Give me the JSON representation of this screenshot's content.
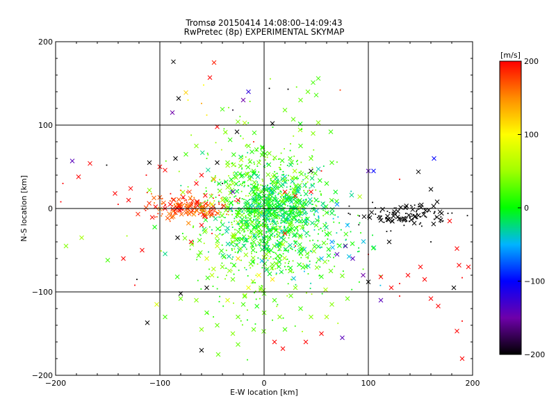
{
  "chart_data": {
    "type": "scatter",
    "title": "Tromsø 20150414 14:08:00–14:09:43",
    "subtitle": "RwPretec (8p) EXPERIMENTAL SKYMAP",
    "xlabel": "E-W location [km]",
    "ylabel": "N-S location [km]",
    "xlim": [
      -200,
      200
    ],
    "ylim": [
      -200,
      200
    ],
    "xticks": [
      -200,
      -100,
      0,
      100,
      200
    ],
    "yticks": [
      -200,
      -100,
      0,
      100,
      200
    ],
    "grid": true,
    "colorbar": {
      "label": "[m/s]",
      "range": [
        -200,
        200
      ],
      "ticks": [
        200,
        100,
        0,
        -100,
        -200
      ],
      "colors": [
        "#000000",
        "#8000c0",
        "#0000ff",
        "#00c0ff",
        "#00ff00",
        "#ffff00",
        "#ff8000",
        "#ff0000"
      ]
    },
    "markers": {
      "cross": "x",
      "dot": "."
    },
    "points": [
      [
        -87,
        176,
        -200,
        "x"
      ],
      [
        -48,
        175,
        190,
        "x"
      ],
      [
        -52,
        157,
        200,
        "x"
      ],
      [
        -58,
        148,
        100,
        "."
      ],
      [
        -75,
        139,
        120,
        "x"
      ],
      [
        -82,
        132,
        -200,
        "x"
      ],
      [
        -73,
        130,
        100,
        "."
      ],
      [
        -60,
        126,
        140,
        "."
      ],
      [
        -88,
        115,
        -150,
        "x"
      ],
      [
        -55,
        112,
        110,
        "."
      ],
      [
        -40,
        119,
        20,
        "x"
      ],
      [
        -30,
        118,
        -190,
        "."
      ],
      [
        -20,
        130,
        -150,
        "x"
      ],
      [
        -15,
        140,
        -120,
        "x"
      ],
      [
        5,
        144,
        -200,
        "."
      ],
      [
        23,
        143,
        -200,
        "."
      ],
      [
        35,
        130,
        30,
        "x"
      ],
      [
        42,
        140,
        30,
        "x"
      ],
      [
        50,
        136,
        20,
        "x"
      ],
      [
        47,
        151,
        20,
        "x"
      ],
      [
        52,
        156,
        20,
        "x"
      ],
      [
        73,
        142,
        180,
        "."
      ],
      [
        -34,
        121,
        40,
        "."
      ],
      [
        -45,
        98,
        200,
        "x"
      ],
      [
        -26,
        92,
        -200,
        "x"
      ],
      [
        8,
        102,
        -200,
        "x"
      ],
      [
        20,
        118,
        30,
        "x"
      ],
      [
        28,
        107,
        30,
        "x"
      ],
      [
        52,
        103,
        40,
        "x"
      ],
      [
        64,
        92,
        20,
        "x"
      ],
      [
        47,
        90,
        40,
        "x"
      ],
      [
        -10,
        80,
        190,
        "."
      ],
      [
        -178,
        38,
        200,
        "x"
      ],
      [
        -184,
        57,
        -140,
        "x"
      ],
      [
        -167,
        54,
        200,
        "x"
      ],
      [
        -151,
        52,
        -200,
        "."
      ],
      [
        -193,
        30,
        200,
        "."
      ],
      [
        -128,
        24,
        200,
        "x"
      ],
      [
        -143,
        18,
        200,
        "x"
      ],
      [
        -130,
        10,
        200,
        "x"
      ],
      [
        -195,
        8,
        200,
        "."
      ],
      [
        -140,
        5,
        200,
        "."
      ],
      [
        -110,
        22,
        40,
        "x"
      ],
      [
        -113,
        40,
        200,
        "."
      ],
      [
        -175,
        -35,
        50,
        "x"
      ],
      [
        -190,
        -45,
        40,
        "x"
      ],
      [
        -117,
        -50,
        200,
        "x"
      ],
      [
        -135,
        -60,
        200,
        "x"
      ],
      [
        -150,
        -62,
        20,
        "x"
      ],
      [
        -122,
        -85,
        -200,
        "."
      ],
      [
        -124,
        -92,
        200,
        "."
      ],
      [
        -103,
        -115,
        80,
        "x"
      ],
      [
        -95,
        -130,
        20,
        "x"
      ],
      [
        -112,
        -137,
        -200,
        "x"
      ],
      [
        -80,
        -102,
        -200,
        "x"
      ],
      [
        -80,
        -108,
        30,
        "x"
      ],
      [
        -55,
        -95,
        -200,
        "x"
      ],
      [
        -60,
        -170,
        -200,
        "x"
      ],
      [
        -25,
        -163,
        30,
        "x"
      ],
      [
        -44,
        -175,
        30,
        "x"
      ],
      [
        10,
        -160,
        200,
        "x"
      ],
      [
        18,
        -168,
        200,
        "x"
      ],
      [
        40,
        -160,
        200,
        "x"
      ],
      [
        55,
        -150,
        200,
        "x"
      ],
      [
        -60,
        -145,
        40,
        "x"
      ],
      [
        65,
        -115,
        40,
        "x"
      ],
      [
        80,
        -108,
        30,
        "x"
      ],
      [
        100,
        -88,
        -200,
        "x"
      ],
      [
        112,
        -82,
        200,
        "x"
      ],
      [
        122,
        -95,
        200,
        "x"
      ],
      [
        130,
        -90,
        200,
        "."
      ],
      [
        138,
        -80,
        200,
        "x"
      ],
      [
        130,
        -105,
        200,
        "."
      ],
      [
        112,
        -110,
        -140,
        "x"
      ],
      [
        154,
        -85,
        200,
        "x"
      ],
      [
        160,
        -108,
        200,
        "x"
      ],
      [
        167,
        -117,
        200,
        "x"
      ],
      [
        182,
        -95,
        -200,
        "x"
      ],
      [
        190,
        -83,
        200,
        "."
      ],
      [
        187,
        -68,
        200,
        "x"
      ],
      [
        185,
        -48,
        200,
        "x"
      ],
      [
        178,
        -15,
        200,
        "x"
      ],
      [
        196,
        -70,
        200,
        "x"
      ],
      [
        190,
        -135,
        200,
        "."
      ],
      [
        185,
        -147,
        200,
        "x"
      ],
      [
        190,
        -180,
        200,
        "x"
      ],
      [
        75,
        -155,
        -140,
        "x"
      ],
      [
        60,
        -130,
        50,
        "x"
      ],
      [
        120,
        -40,
        -200,
        "x"
      ],
      [
        100,
        -55,
        200,
        "."
      ],
      [
        160,
        -40,
        -200,
        "."
      ],
      [
        150,
        -70,
        200,
        "x"
      ],
      [
        166,
        8,
        -200,
        "x"
      ],
      [
        160,
        23,
        -200,
        "x"
      ],
      [
        148,
        44,
        -200,
        "x"
      ],
      [
        130,
        35,
        200,
        "."
      ],
      [
        163,
        60,
        -100,
        "x"
      ],
      [
        100,
        45,
        -140,
        "x"
      ],
      [
        105,
        45,
        -100,
        "x"
      ],
      [
        65,
        55,
        20,
        "x"
      ],
      [
        70,
        -55,
        -140,
        "x"
      ],
      [
        78,
        -45,
        -140,
        "x"
      ],
      [
        85,
        -60,
        -140,
        "x"
      ],
      [
        95,
        -80,
        -150,
        "x"
      ],
      [
        -45,
        55,
        -200,
        "x"
      ],
      [
        -65,
        30,
        200,
        "x"
      ],
      [
        -95,
        46,
        200,
        "x"
      ],
      [
        -100,
        50,
        200,
        "x"
      ],
      [
        -110,
        55,
        -200,
        "x"
      ],
      [
        -85,
        60,
        -200,
        "x"
      ],
      [
        -48,
        35,
        140,
        "x"
      ],
      [
        -60,
        40,
        200,
        "x"
      ],
      [
        -40,
        30,
        -200,
        "."
      ],
      [
        -30,
        20,
        -140,
        "x"
      ],
      [
        -25,
        10,
        200,
        "x"
      ],
      [
        20,
        20,
        200,
        "x"
      ],
      [
        30,
        15,
        200,
        "x"
      ],
      [
        45,
        20,
        200,
        "x"
      ],
      [
        45,
        45,
        -200,
        "x"
      ],
      [
        55,
        45,
        200,
        "."
      ],
      [
        -83,
        -35,
        -200,
        "x"
      ],
      [
        -70,
        -40,
        200,
        "x"
      ],
      [
        -60,
        -20,
        200,
        "x"
      ],
      [
        -50,
        -30,
        200,
        "."
      ],
      [
        20,
        -30,
        200,
        "x"
      ],
      [
        30,
        -45,
        200,
        "."
      ],
      [
        -15,
        75,
        30,
        "x"
      ],
      [
        0,
        72,
        20,
        "."
      ],
      [
        -25,
        -60,
        120,
        "x"
      ],
      [
        -5,
        -80,
        100,
        "x"
      ],
      [
        -15,
        -95,
        90,
        "x"
      ],
      [
        8,
        -85,
        110,
        "x"
      ],
      [
        5,
        -60,
        100,
        "."
      ],
      [
        -35,
        -110,
        80,
        "x"
      ],
      [
        -20,
        -115,
        20,
        "x"
      ],
      [
        0,
        -125,
        30,
        "x"
      ],
      [
        15,
        -130,
        40,
        "x"
      ],
      [
        35,
        -120,
        20,
        "x"
      ],
      [
        30,
        -95,
        40,
        "x"
      ],
      [
        10,
        -110,
        20,
        "x"
      ],
      [
        45,
        -130,
        40,
        "x"
      ],
      [
        -55,
        -125,
        20,
        "x"
      ],
      [
        -45,
        -140,
        30,
        "x"
      ],
      [
        -30,
        -150,
        40,
        "x"
      ],
      [
        -10,
        -145,
        30,
        "x"
      ],
      [
        20,
        -145,
        20,
        "x"
      ],
      [
        -25,
        -130,
        30,
        "x"
      ],
      [
        -65,
        -110,
        40,
        "x"
      ],
      [
        10,
        40,
        30,
        "x"
      ],
      [
        20,
        35,
        30,
        "x"
      ],
      [
        -10,
        45,
        20,
        "x"
      ],
      [
        -5,
        55,
        40,
        "x"
      ],
      [
        -35,
        55,
        30,
        "x"
      ],
      [
        -55,
        60,
        20,
        "."
      ],
      [
        -65,
        75,
        40,
        "x"
      ],
      [
        -75,
        65,
        20,
        "x"
      ],
      [
        35,
        75,
        20,
        "x"
      ],
      [
        45,
        60,
        30,
        "x"
      ],
      [
        25,
        60,
        20,
        "x"
      ],
      [
        40,
        30,
        20,
        "."
      ],
      [
        60,
        30,
        10,
        "x"
      ],
      [
        70,
        5,
        -60,
        "x"
      ],
      [
        80,
        -20,
        -50,
        "x"
      ],
      [
        60,
        -5,
        20,
        "x"
      ],
      [
        50,
        -20,
        20,
        "x"
      ],
      [
        65,
        -40,
        -60,
        "x"
      ],
      [
        55,
        -60,
        -50,
        "x"
      ],
      [
        40,
        -70,
        20,
        "x"
      ],
      [
        25,
        -75,
        30,
        "x"
      ],
      [
        15,
        -60,
        20,
        "x"
      ],
      [
        -40,
        -70,
        40,
        "x"
      ],
      [
        -30,
        -85,
        30,
        "x"
      ],
      [
        -50,
        -80,
        60,
        "x"
      ],
      [
        -55,
        -60,
        80,
        "x"
      ],
      [
        -45,
        -45,
        70,
        "x"
      ],
      [
        -30,
        -40,
        40,
        "x"
      ],
      [
        -10,
        -40,
        20,
        "x"
      ],
      [
        -20,
        -25,
        30,
        "x"
      ],
      [
        0,
        -20,
        20,
        "x"
      ],
      [
        10,
        -10,
        10,
        "x"
      ],
      [
        20,
        -5,
        -10,
        "x"
      ],
      [
        30,
        0,
        -20,
        "x"
      ],
      [
        25,
        10,
        -20,
        "x"
      ],
      [
        15,
        5,
        -10,
        "x"
      ],
      [
        5,
        0,
        0,
        "x"
      ],
      [
        -5,
        5,
        10,
        "x"
      ],
      [
        -15,
        0,
        20,
        "x"
      ],
      [
        -25,
        -5,
        30,
        "x"
      ],
      [
        -35,
        0,
        40,
        "x"
      ],
      [
        -40,
        10,
        60,
        "x"
      ],
      [
        -50,
        5,
        100,
        "x"
      ],
      [
        -60,
        0,
        150,
        "x"
      ],
      [
        -70,
        5,
        180,
        "x"
      ],
      [
        -80,
        0,
        200,
        "x"
      ],
      [
        -90,
        5,
        200,
        "x"
      ],
      [
        -95,
        0,
        200,
        "x"
      ],
      [
        -85,
        -5,
        180,
        "x"
      ],
      [
        -75,
        -5,
        170,
        "x"
      ],
      [
        -65,
        -2,
        160,
        "x"
      ],
      [
        -55,
        -5,
        130,
        "x"
      ],
      [
        10,
        25,
        -20,
        "x"
      ],
      [
        0,
        15,
        0,
        "x"
      ],
      [
        -10,
        20,
        10,
        "x"
      ],
      [
        5,
        -35,
        20,
        "x"
      ],
      [
        25,
        -25,
        0,
        "x"
      ],
      [
        35,
        -15,
        -10,
        "x"
      ],
      [
        40,
        5,
        -20,
        "x"
      ],
      [
        50,
        10,
        -10,
        "x"
      ]
    ],
    "clusters": [
      {
        "cx": 0,
        "cy": -5,
        "sx": 28,
        "sy": 32,
        "n": 520,
        "vmin": -30,
        "vmax": 40,
        "marker": "."
      },
      {
        "cx": 0,
        "cy": -40,
        "sx": 35,
        "sy": 45,
        "n": 300,
        "vmin": 0,
        "vmax": 60,
        "marker": "."
      },
      {
        "cx": 10,
        "cy": 0,
        "sx": 18,
        "sy": 18,
        "n": 260,
        "vmin": -40,
        "vmax": 0,
        "marker": "."
      },
      {
        "cx": -70,
        "cy": 2,
        "sx": 20,
        "sy": 8,
        "n": 170,
        "vmin": 150,
        "vmax": 200,
        "marker": "."
      },
      {
        "cx": 135,
        "cy": -8,
        "sx": 22,
        "sy": 7,
        "n": 120,
        "vmin": -200,
        "vmax": -200,
        "marker": "."
      },
      {
        "cx": -5,
        "cy": 30,
        "sx": 30,
        "sy": 35,
        "n": 180,
        "vmin": 0,
        "vmax": 60,
        "marker": "."
      },
      {
        "cx": 40,
        "cy": -30,
        "sx": 30,
        "sy": 30,
        "n": 150,
        "vmin": -50,
        "vmax": 20,
        "marker": "."
      }
    ]
  }
}
